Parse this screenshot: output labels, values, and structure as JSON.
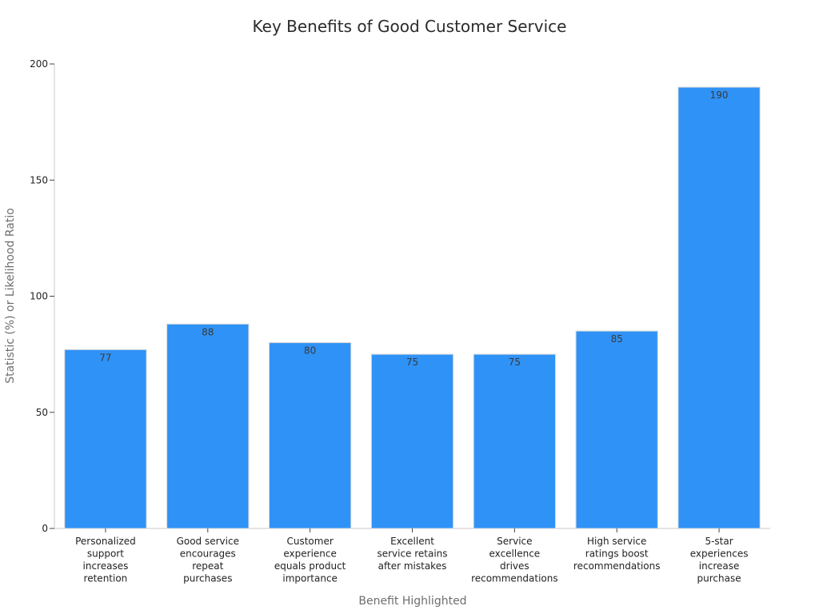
{
  "chart_data": {
    "type": "bar",
    "title": "Key Benefits of Good Customer Service",
    "xlabel": "Benefit Highlighted",
    "ylabel": "Statistic (%) or Likelihood Ratio",
    "categories": [
      [
        "Personalized",
        "support",
        "increases",
        "retention"
      ],
      [
        "Good service",
        "encourages",
        "repeat",
        "purchases"
      ],
      [
        "Customer",
        "experience",
        "equals product",
        "importance"
      ],
      [
        "Excellent",
        "service retains",
        "after mistakes"
      ],
      [
        "Service",
        "excellence",
        "drives",
        "recommendations"
      ],
      [
        "High service",
        "ratings boost",
        "recommendations"
      ],
      [
        "5-star",
        "experiences",
        "increase",
        "purchase"
      ]
    ],
    "values": [
      77,
      88,
      80,
      75,
      75,
      85,
      190
    ],
    "ylim": [
      0,
      200
    ],
    "yticks": [
      0,
      50,
      100,
      150,
      200
    ],
    "grid": false,
    "legend": "none",
    "bar_color": "#2f92f6",
    "bar_edge_color": "#d9d9d9"
  }
}
